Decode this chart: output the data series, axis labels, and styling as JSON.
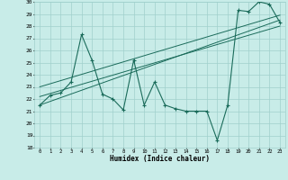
{
  "xlabel": "Humidex (Indice chaleur)",
  "x": [
    0,
    1,
    2,
    3,
    4,
    5,
    6,
    7,
    8,
    9,
    10,
    11,
    12,
    13,
    14,
    15,
    16,
    17,
    18,
    19,
    20,
    21,
    22,
    23
  ],
  "y_data": [
    21.5,
    22.3,
    22.5,
    23.4,
    27.3,
    25.2,
    22.4,
    22.0,
    21.1,
    25.2,
    21.5,
    23.4,
    21.5,
    21.2,
    21.0,
    21.0,
    21.0,
    18.6,
    21.5,
    29.3,
    29.2,
    30.0,
    29.8,
    28.3
  ],
  "line_color": "#1a6b5a",
  "bg_color": "#c8ece8",
  "grid_color": "#a0d0cc",
  "text_color": "#000000",
  "ylim": [
    18,
    30
  ],
  "xlim": [
    -0.5,
    23.5
  ],
  "yticks": [
    18,
    19,
    20,
    21,
    22,
    23,
    24,
    25,
    26,
    27,
    28,
    29,
    30
  ],
  "xticks": [
    0,
    1,
    2,
    3,
    4,
    5,
    6,
    7,
    8,
    9,
    10,
    11,
    12,
    13,
    14,
    15,
    16,
    17,
    18,
    19,
    20,
    21,
    22,
    23
  ],
  "reg1": [
    21.5,
    28.5
  ],
  "reg2": [
    22.2,
    28.0
  ],
  "reg3": [
    23.0,
    28.9
  ]
}
